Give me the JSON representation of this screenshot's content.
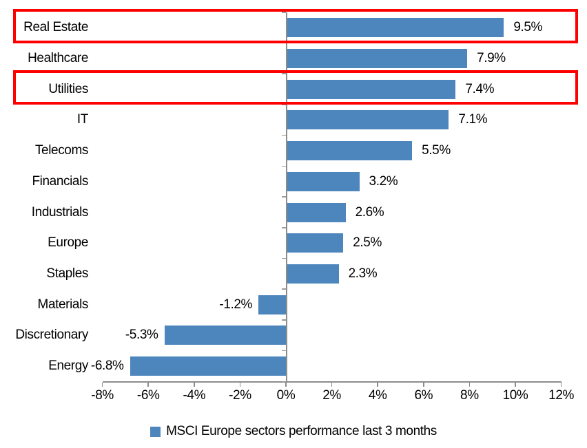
{
  "chart_data": {
    "type": "bar",
    "orientation": "horizontal",
    "title": "",
    "categories": [
      "Real Estate",
      "Healthcare",
      "Utilities",
      "IT",
      "Telecoms",
      "Financials",
      "Industrials",
      "Europe",
      "Staples",
      "Materials",
      "Discretionary",
      "Energy"
    ],
    "values": [
      9.5,
      7.9,
      7.4,
      7.1,
      5.5,
      3.2,
      2.6,
      2.5,
      2.3,
      -1.2,
      -5.3,
      -6.8
    ],
    "value_labels": [
      "9.5%",
      "7.9%",
      "7.4%",
      "7.1%",
      "5.5%",
      "3.2%",
      "2.6%",
      "2.5%",
      "2.3%",
      "-1.2%",
      "-5.3%",
      "-6.8%"
    ],
    "x_tick_values": [
      -8,
      -6,
      -4,
      -2,
      0,
      2,
      4,
      6,
      8,
      10,
      12
    ],
    "x_tick_labels": [
      "-8%",
      "-6%",
      "-4%",
      "-2%",
      "0%",
      "2%",
      "4%",
      "6%",
      "8%",
      "10%",
      "12%"
    ],
    "xlim": [
      -8,
      12
    ],
    "grid": false,
    "legend_label": "MSCI Europe sectors performance last 3 months",
    "legend_position": "bottom",
    "highlighted_categories": [
      "Real Estate",
      "Utilities"
    ],
    "colors": {
      "bar": "#4d86bc",
      "axis": "#8c8c8c",
      "tick": "#9b9b9b",
      "text": "#000000",
      "highlight_box": "#ff0000",
      "background": "#ffffff"
    }
  }
}
